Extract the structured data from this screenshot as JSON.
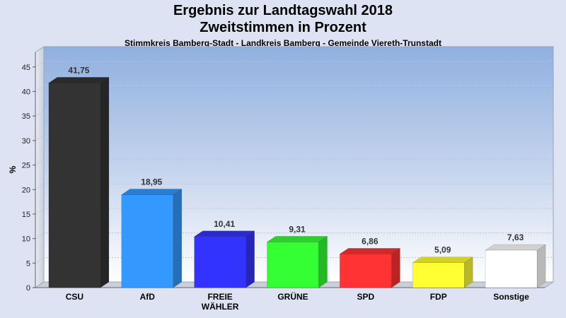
{
  "title": "Ergebnis zur Landtagswahl 2018",
  "subtitle": "Zweitstimmen in Prozent",
  "caption": "Stimmkreis Bamberg-Stadt - Landkreis Bamberg - Gemeinde Viereth-Trunstadt",
  "chart_data": {
    "type": "bar",
    "title": "Ergebnis zur Landtagswahl 2018",
    "subtitle": "Zweitstimmen in Prozent",
    "ylabel": "%",
    "xlabel": "",
    "ylim": [
      0,
      48
    ],
    "yticks": [
      0,
      5,
      10,
      15,
      20,
      25,
      30,
      35,
      40,
      45
    ],
    "grid": true,
    "categories": [
      "CSU",
      "AfD",
      "FREIE\nWÄHLER",
      "GRÜNE",
      "SPD",
      "FDP",
      "Sonstige"
    ],
    "values": [
      41.75,
      18.95,
      10.41,
      9.31,
      6.86,
      5.09,
      7.63
    ],
    "value_labels": [
      "41,75",
      "18,95",
      "10,41",
      "9,31",
      "6,86",
      "5,09",
      "7,63"
    ],
    "colors": [
      "#333333",
      "#3399ff",
      "#3333ff",
      "#33ff33",
      "#ff3333",
      "#ffff33",
      "#ffffff"
    ]
  }
}
